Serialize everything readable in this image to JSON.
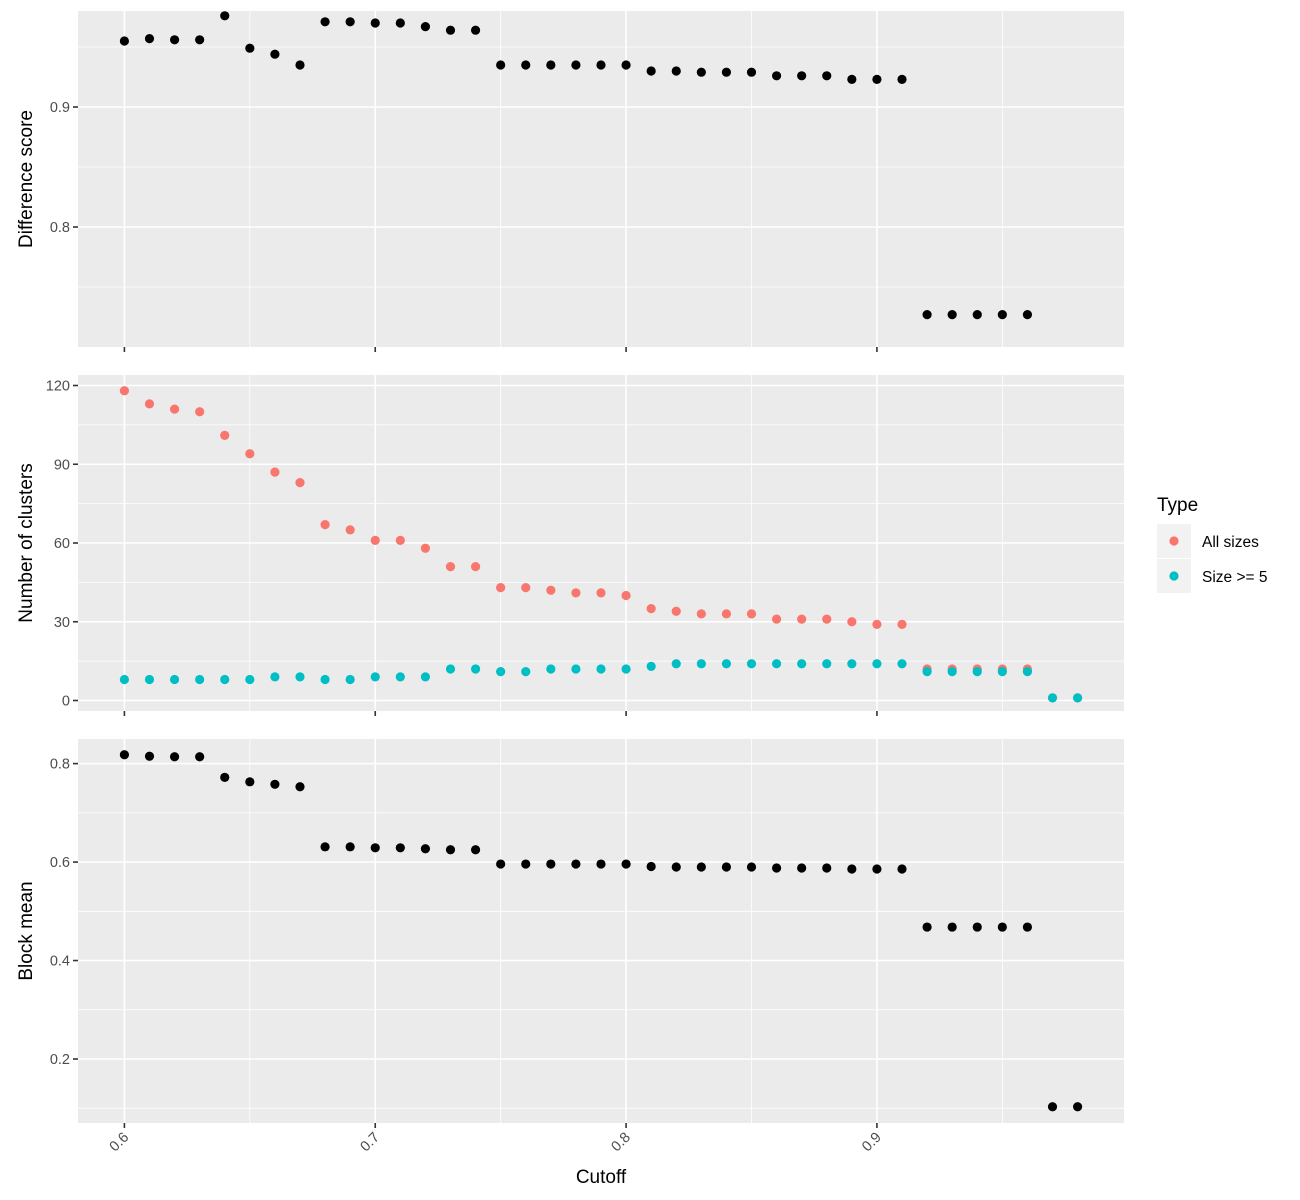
{
  "chart_data": [
    {
      "type": "scatter",
      "ylabel": "Difference score",
      "yticks": [
        0.8,
        0.9
      ],
      "ylim": [
        0.7,
        0.98
      ],
      "color": "#000000",
      "x": [
        0.6,
        0.61,
        0.62,
        0.63,
        0.64,
        0.65,
        0.66,
        0.67,
        0.68,
        0.69,
        0.7,
        0.71,
        0.72,
        0.73,
        0.74,
        0.75,
        0.76,
        0.77,
        0.78,
        0.79,
        0.8,
        0.81,
        0.82,
        0.83,
        0.84,
        0.85,
        0.86,
        0.87,
        0.88,
        0.89,
        0.9,
        0.91,
        0.92,
        0.93,
        0.94,
        0.95,
        0.96
      ],
      "y": [
        0.955,
        0.957,
        0.956,
        0.956,
        0.976,
        0.949,
        0.944,
        0.935,
        0.971,
        0.971,
        0.97,
        0.97,
        0.967,
        0.964,
        0.964,
        0.935,
        0.935,
        0.935,
        0.935,
        0.935,
        0.935,
        0.93,
        0.93,
        0.929,
        0.929,
        0.929,
        0.926,
        0.926,
        0.926,
        0.923,
        0.923,
        0.923,
        0.727,
        0.727,
        0.727,
        0.727,
        0.727
      ]
    },
    {
      "type": "scatter",
      "ylabel": "Number of clusters",
      "yticks": [
        0,
        30,
        60,
        90,
        120
      ],
      "ylim": [
        -4,
        124
      ],
      "legend": {
        "title": "Type",
        "position": "right"
      },
      "series": [
        {
          "name": "All sizes",
          "color": "#F8766D",
          "x": [
            0.6,
            0.61,
            0.62,
            0.63,
            0.64,
            0.65,
            0.66,
            0.67,
            0.68,
            0.69,
            0.7,
            0.71,
            0.72,
            0.73,
            0.74,
            0.75,
            0.76,
            0.77,
            0.78,
            0.79,
            0.8,
            0.81,
            0.82,
            0.83,
            0.84,
            0.85,
            0.86,
            0.87,
            0.88,
            0.89,
            0.9,
            0.91,
            0.92,
            0.93,
            0.94,
            0.95,
            0.96,
            0.97,
            0.98
          ],
          "y": [
            118,
            113,
            111,
            110,
            101,
            94,
            87,
            83,
            67,
            65,
            61,
            61,
            58,
            51,
            51,
            43,
            43,
            42,
            41,
            41,
            40,
            35,
            34,
            33,
            33,
            33,
            31,
            31,
            31,
            30,
            29,
            29,
            12,
            12,
            12,
            12,
            12,
            1,
            1
          ]
        },
        {
          "name": "Size >= 5",
          "color": "#00BFC4",
          "x": [
            0.6,
            0.61,
            0.62,
            0.63,
            0.64,
            0.65,
            0.66,
            0.67,
            0.68,
            0.69,
            0.7,
            0.71,
            0.72,
            0.73,
            0.74,
            0.75,
            0.76,
            0.77,
            0.78,
            0.79,
            0.8,
            0.81,
            0.82,
            0.83,
            0.84,
            0.85,
            0.86,
            0.87,
            0.88,
            0.89,
            0.9,
            0.91,
            0.92,
            0.93,
            0.94,
            0.95,
            0.96,
            0.97,
            0.98
          ],
          "y": [
            8,
            8,
            8,
            8,
            8,
            8,
            9,
            9,
            8,
            8,
            9,
            9,
            9,
            12,
            12,
            11,
            11,
            12,
            12,
            12,
            12,
            13,
            14,
            14,
            14,
            14,
            14,
            14,
            14,
            14,
            14,
            14,
            11,
            11,
            11,
            11,
            11,
            1,
            1
          ]
        }
      ]
    },
    {
      "type": "scatter",
      "ylabel": "Block mean",
      "yticks": [
        0.2,
        0.4,
        0.6,
        0.8
      ],
      "ylim": [
        0.07,
        0.85
      ],
      "color": "#000000",
      "x": [
        0.6,
        0.61,
        0.62,
        0.63,
        0.64,
        0.65,
        0.66,
        0.67,
        0.68,
        0.69,
        0.7,
        0.71,
        0.72,
        0.73,
        0.74,
        0.75,
        0.76,
        0.77,
        0.78,
        0.79,
        0.8,
        0.81,
        0.82,
        0.83,
        0.84,
        0.85,
        0.86,
        0.87,
        0.88,
        0.89,
        0.9,
        0.91,
        0.92,
        0.93,
        0.94,
        0.95,
        0.96,
        0.97,
        0.98
      ],
      "y": [
        0.818,
        0.815,
        0.814,
        0.814,
        0.772,
        0.763,
        0.758,
        0.753,
        0.631,
        0.631,
        0.629,
        0.629,
        0.627,
        0.625,
        0.625,
        0.596,
        0.596,
        0.596,
        0.596,
        0.596,
        0.596,
        0.591,
        0.59,
        0.59,
        0.59,
        0.59,
        0.588,
        0.588,
        0.588,
        0.586,
        0.586,
        0.586,
        0.468,
        0.468,
        0.468,
        0.468,
        0.468,
        0.103,
        0.103
      ]
    }
  ],
  "x_axis": {
    "label": "Cutoff",
    "ticks": [
      0.6,
      0.7,
      0.8,
      0.9
    ],
    "tick_labels": [
      "0.6",
      "0.7",
      "0.8",
      "0.9"
    ],
    "xlim": [
      0.5815,
      0.9985
    ]
  }
}
